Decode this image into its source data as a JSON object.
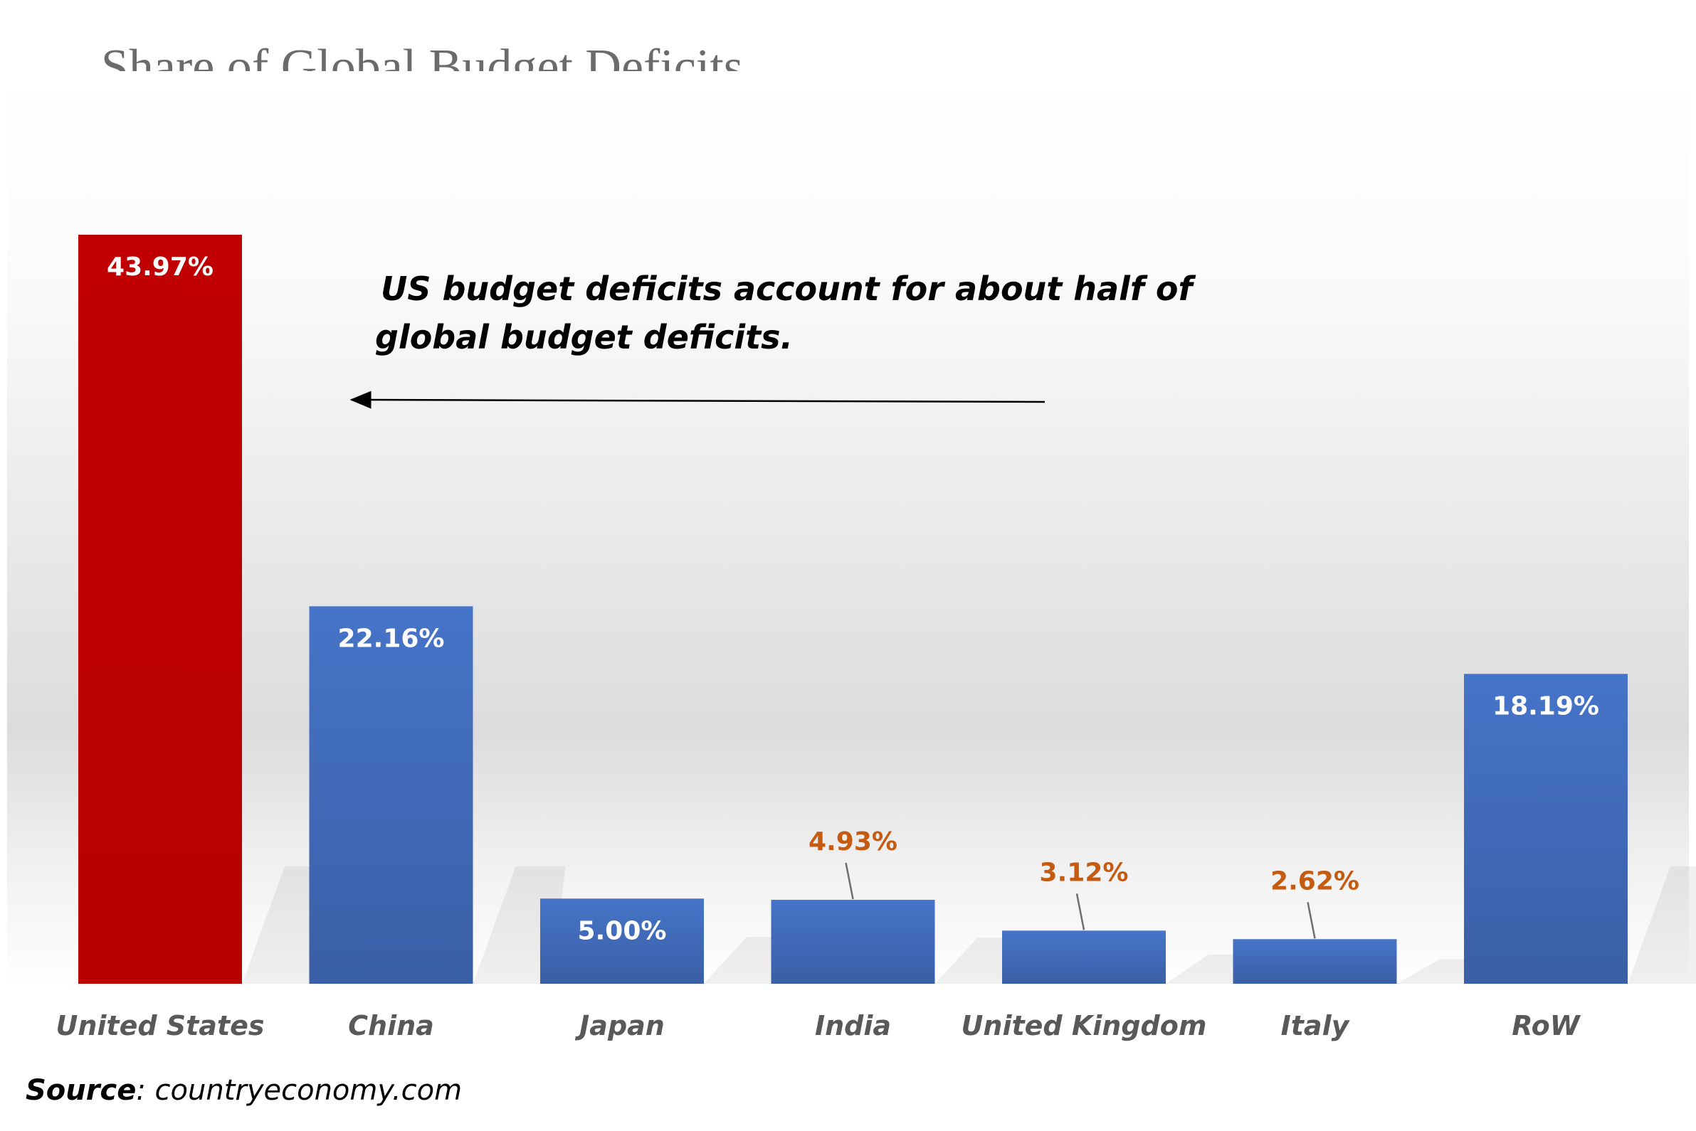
{
  "chart_data": {
    "type": "bar",
    "title": "Share of Global Budget Deficits",
    "categories": [
      "United States",
      "China",
      "Japan",
      "India",
      "United Kingdom",
      "Italy",
      "RoW"
    ],
    "values": [
      43.97,
      22.16,
      5.0,
      4.93,
      3.12,
      2.62,
      18.19
    ],
    "data_labels": [
      "43.97%",
      "22.16%",
      "5.00%",
      "4.93%",
      "3.12%",
      "2.62%",
      "18.19%"
    ],
    "label_position": [
      "inside",
      "inside",
      "inside",
      "outside",
      "outside",
      "outside",
      "inside"
    ],
    "colors": [
      "#c00000",
      "#4472c4",
      "#4472c4",
      "#4472c4",
      "#4472c4",
      "#4472c4",
      "#4472c4"
    ],
    "inside_label_color": "#ffffff",
    "outside_label_color": "#c55a11",
    "category_label_color": "#595959",
    "grid": false,
    "xlabel": "",
    "ylabel": "",
    "annotation": {
      "lines": [
        "US budget deficits account for about half of",
        "global budget deficits."
      ],
      "arrow": "points left toward United States bar"
    }
  },
  "source": {
    "label": "Source",
    "text": ": countryeconomy.com"
  }
}
